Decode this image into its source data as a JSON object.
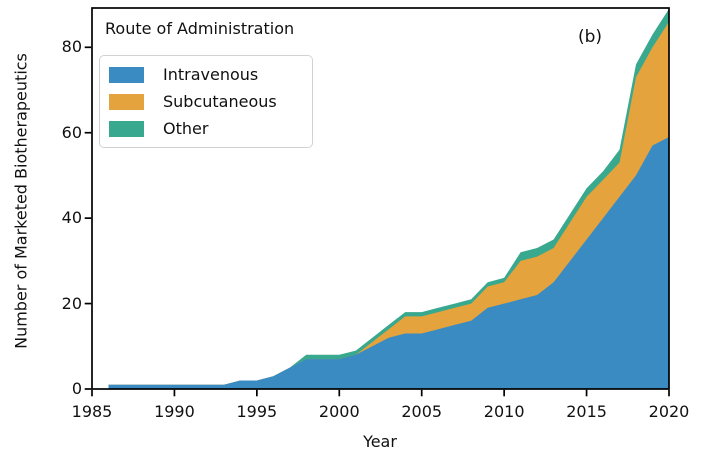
{
  "figure": {
    "panel_label": "(b)",
    "legend_title": "Route of Administration"
  },
  "chart_data": {
    "type": "area",
    "stacked": true,
    "title": "Route of Administration",
    "xlabel": "Year",
    "ylabel": "Number of Marketed Biotherapeutics",
    "xlim": [
      1985,
      2020
    ],
    "ylim": [
      0,
      89.2
    ],
    "x_ticks": [
      1985,
      1990,
      1995,
      2000,
      2005,
      2010,
      2015,
      2020
    ],
    "y_ticks": [
      0,
      20,
      40,
      60,
      80
    ],
    "grid": false,
    "legend_position": "upper left",
    "x": [
      1986,
      1987,
      1988,
      1989,
      1990,
      1991,
      1992,
      1993,
      1994,
      1995,
      1996,
      1997,
      1998,
      1999,
      2000,
      2001,
      2002,
      2003,
      2004,
      2005,
      2006,
      2007,
      2008,
      2009,
      2010,
      2011,
      2012,
      2013,
      2014,
      2015,
      2016,
      2017,
      2018,
      2019,
      2020
    ],
    "series": [
      {
        "name": "Intravenous",
        "color": "#3a8bc2",
        "values": [
          1,
          1,
          1,
          1,
          1,
          1,
          1,
          1,
          2,
          2,
          3,
          5,
          7,
          7,
          7,
          8,
          10,
          12,
          13,
          13,
          14,
          15,
          16,
          19,
          20,
          21,
          22,
          25,
          30,
          35,
          40,
          45,
          50,
          57,
          59
        ]
      },
      {
        "name": "Subcutaneous",
        "color": "#e4a33c",
        "values": [
          0,
          0,
          0,
          0,
          0,
          0,
          0,
          0,
          0,
          0,
          0,
          0,
          0,
          0,
          0,
          0,
          1,
          2,
          4,
          4,
          4,
          4,
          4,
          5,
          5,
          9,
          9,
          8,
          9,
          10,
          9,
          8,
          23,
          23,
          27
        ]
      },
      {
        "name": "Other",
        "color": "#38a88e",
        "values": [
          0,
          0,
          0,
          0,
          0,
          0,
          0,
          0,
          0,
          0,
          0,
          0,
          1,
          1,
          1,
          1,
          1,
          1,
          1,
          1,
          1,
          1,
          1,
          1,
          1,
          2,
          2,
          2,
          2,
          2,
          2,
          3,
          3,
          3,
          3
        ]
      }
    ],
    "axis_color": "#000000",
    "background_color": "#ffffff"
  }
}
